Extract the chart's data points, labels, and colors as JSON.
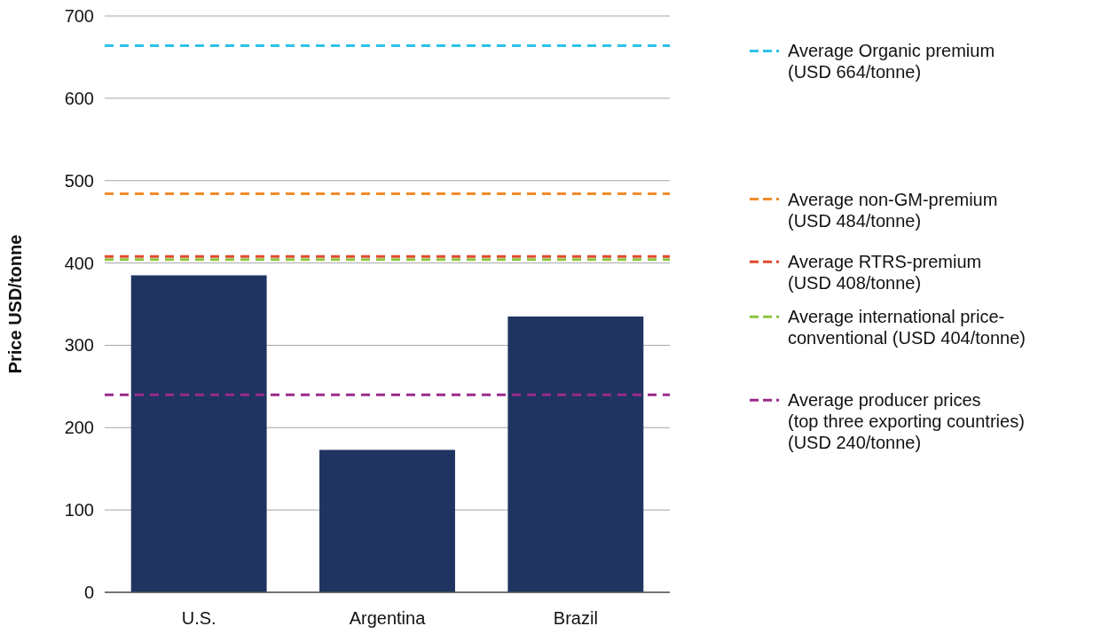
{
  "chart_data": {
    "type": "bar",
    "ylabel": "Price USD/tonne",
    "categories": [
      "U.S.",
      "Argentina",
      "Brazil"
    ],
    "values": [
      385,
      173,
      335
    ],
    "color": "#1f3461",
    "ylim": [
      0,
      700
    ],
    "yticks": [
      0,
      100,
      200,
      300,
      400,
      500,
      600,
      700
    ],
    "grid": "y",
    "legend": "right",
    "line_style": "dashed",
    "ref_lines": [
      {
        "axis": "y",
        "value": 664,
        "label": "Average Organic premium\n(USD 664/tonne)",
        "color": "#2cc3e8"
      },
      {
        "axis": "y",
        "value": 484,
        "label": "Average non-GM-premium\n(USD 484/tonne)",
        "color": "#f28b2a"
      },
      {
        "axis": "y",
        "value": 408,
        "label": "Average RTRS-premium\n(USD 408/tonne)",
        "color": "#e2492e"
      },
      {
        "axis": "y",
        "value": 404,
        "label": "Average international price-\nconventional (USD 404/tonne)",
        "color": "#8cc540"
      },
      {
        "axis": "y",
        "value": 240,
        "label": "Average producer prices\n(top three exporting countries)\n(USD 240/tonne)",
        "color": "#9a2b8c"
      }
    ]
  }
}
